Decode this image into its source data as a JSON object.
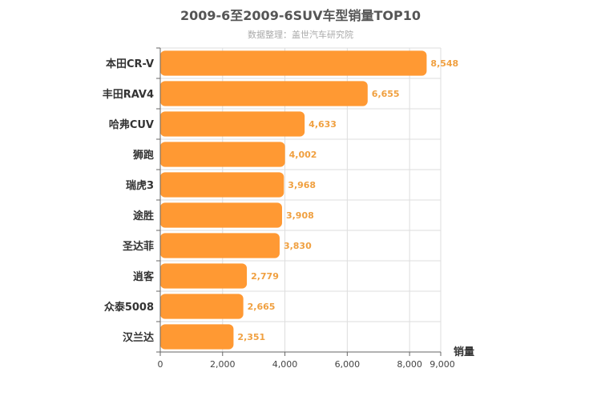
{
  "chart_data": {
    "type": "bar",
    "orientation": "horizontal",
    "title": "2009-6至2009-6SUV车型销量TOP10",
    "subtitle": "数据整理：盖世汽车研究院",
    "categories": [
      "本田CR-V",
      "丰田RAV4",
      "哈弗CUV",
      "狮跑",
      "瑞虎3",
      "途胜",
      "圣达菲",
      "逍客",
      "众泰5008",
      "汉兰达"
    ],
    "values": [
      8548,
      6655,
      4633,
      4002,
      3968,
      3908,
      3830,
      2779,
      2665,
      2351
    ],
    "value_labels": [
      "8,548",
      "6,655",
      "4,633",
      "4,002",
      "3,968",
      "3,908",
      "3,830",
      "2,779",
      "2,665",
      "2,351"
    ],
    "xlabel": "销量",
    "ylabel": "",
    "xlim": [
      0,
      9000
    ],
    "x_ticks": [
      0,
      2000,
      4000,
      6000,
      8000,
      9000
    ],
    "x_tick_labels": [
      "0",
      "2,000",
      "4,000",
      "6,000",
      "8,000",
      "9,000"
    ],
    "grid": true,
    "legend": "none",
    "bar_color": "#ff9933",
    "value_label_color": "#f0a040",
    "grid_color": "#dddddd"
  }
}
